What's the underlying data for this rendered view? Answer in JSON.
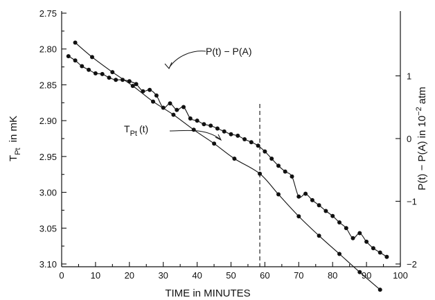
{
  "chart_data": {
    "type": "scatter",
    "xlabel": "TIME in MINUTES",
    "ylabel_left": {
      "main": "T",
      "sub": "Pt",
      "rest": "in mK"
    },
    "ylabel_right": {
      "pre": "P(t) − P(A) in 10",
      "sup": "−2",
      "post": "atm"
    },
    "xlim": [
      0,
      100
    ],
    "ylim_left": [
      2.75,
      3.1
    ],
    "ylim_left_inverted": true,
    "ylim_right": [
      -2,
      2
    ],
    "x_ticks": [
      "0",
      "10",
      "20",
      "30",
      "40",
      "50",
      "60",
      "70",
      "80",
      "90",
      "100"
    ],
    "y_ticks_left": [
      "2.75",
      "2.80",
      "2.85",
      "2.90",
      "2.95",
      "3.00",
      "3.05",
      "3.10"
    ],
    "y_ticks_right": [
      "1",
      "0",
      "−1",
      "−2"
    ],
    "vline_x": 58.5,
    "series": [
      {
        "name": "P(t) − P(A)",
        "axis": "right",
        "label": {
          "text": "P(t) − P(A)",
          "sub": ""
        },
        "x": [
          4,
          9,
          15,
          21,
          27,
          33,
          39,
          45,
          51,
          58.5,
          64,
          70,
          76,
          82,
          88,
          94
        ],
        "values": [
          1.53,
          1.3,
          1.06,
          0.84,
          0.59,
          0.38,
          0.14,
          -0.08,
          -0.32,
          -0.56,
          -0.89,
          -1.24,
          -1.55,
          -1.84,
          -2.13,
          -2.41
        ]
      },
      {
        "name": "T_Pt(t)",
        "axis": "left",
        "label": {
          "text": "T",
          "sub": "Pt",
          "rest": "(t)"
        },
        "x": [
          2,
          4,
          6,
          8,
          10,
          12,
          14,
          16,
          18,
          20,
          22,
          24,
          26,
          28,
          30,
          32,
          34,
          36,
          38,
          40,
          42,
          44,
          46,
          48,
          50,
          52,
          54,
          56,
          58,
          60,
          62,
          64,
          66,
          68,
          70,
          72,
          74,
          76,
          78,
          80,
          82,
          84,
          86,
          88,
          90,
          92,
          94,
          96
        ],
        "values": [
          2.81,
          2.816,
          2.824,
          2.829,
          2.834,
          2.835,
          2.84,
          2.843,
          2.843,
          2.845,
          2.849,
          2.859,
          2.857,
          2.865,
          2.882,
          2.876,
          2.885,
          2.881,
          2.897,
          2.9,
          2.905,
          2.907,
          2.911,
          2.915,
          2.919,
          2.921,
          2.926,
          2.93,
          2.935,
          2.943,
          2.953,
          2.963,
          2.971,
          2.978,
          3.006,
          3.002,
          3.011,
          3.018,
          3.026,
          3.033,
          3.042,
          3.05,
          3.064,
          3.057,
          3.069,
          3.078,
          3.084,
          3.09
        ]
      }
    ]
  }
}
